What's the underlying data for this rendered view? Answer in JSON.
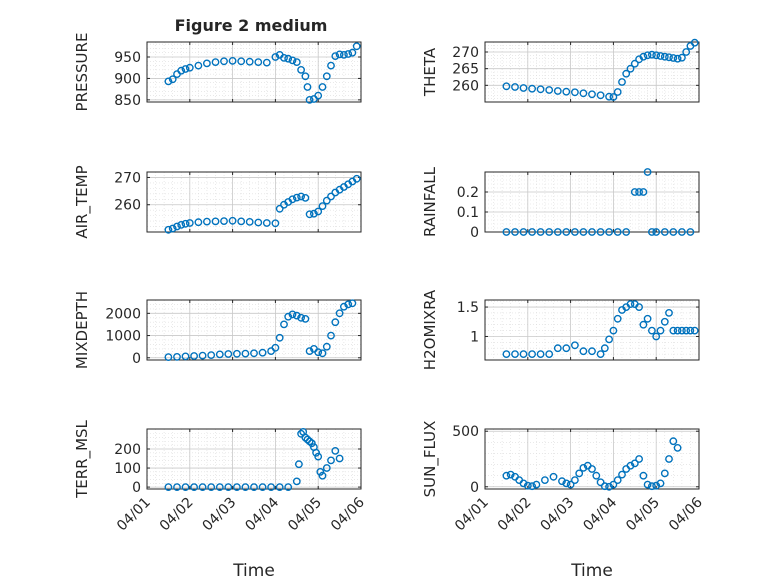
{
  "figure_title": "Figure 2 medium",
  "x_axis_label": "Time",
  "x_tick_labels": [
    "04/01",
    "04/02",
    "04/03",
    "04/04",
    "04/05",
    "04/06"
  ],
  "colors": {
    "marker": "#0072BD",
    "axis": "#262626",
    "grid": "#DCDCDC",
    "background": "#ffffff"
  },
  "chart_data": [
    {
      "type": "scatter",
      "ylabel": "PRESSURE",
      "x_ticks": [
        0,
        1,
        2,
        3,
        4,
        5
      ],
      "xlim": [
        0,
        5
      ],
      "ylim": [
        845,
        985
      ],
      "yticks": [
        850,
        900,
        950
      ],
      "yticklabels": [
        "850",
        "900",
        "950"
      ],
      "x": [
        0.5,
        0.6,
        0.7,
        0.8,
        0.9,
        1.0,
        1.2,
        1.4,
        1.6,
        1.8,
        2.0,
        2.2,
        2.4,
        2.6,
        2.8,
        3.0,
        3.1,
        3.2,
        3.3,
        3.4,
        3.5,
        3.6,
        3.7,
        3.75,
        3.8,
        3.9,
        4.0,
        4.1,
        4.2,
        4.3,
        4.4,
        4.5,
        4.6,
        4.7,
        4.8,
        4.9
      ],
      "y": [
        893,
        898,
        910,
        918,
        922,
        925,
        930,
        935,
        938,
        940,
        941,
        940,
        939,
        938,
        937,
        950,
        955,
        948,
        946,
        942,
        938,
        920,
        905,
        880,
        850,
        852,
        860,
        880,
        905,
        930,
        952,
        956,
        955,
        957,
        960,
        975
      ]
    },
    {
      "type": "scatter",
      "ylabel": "THETA",
      "x_ticks": [
        0,
        1,
        2,
        3,
        4,
        5
      ],
      "xlim": [
        0,
        5
      ],
      "ylim": [
        255,
        273
      ],
      "yticks": [
        260,
        265,
        270
      ],
      "yticklabels": [
        "260",
        "265",
        "270"
      ],
      "x": [
        0.5,
        0.7,
        0.9,
        1.1,
        1.3,
        1.5,
        1.7,
        1.9,
        2.1,
        2.3,
        2.5,
        2.7,
        2.9,
        3.0,
        3.1,
        3.2,
        3.3,
        3.4,
        3.5,
        3.6,
        3.7,
        3.8,
        3.9,
        4.0,
        4.1,
        4.2,
        4.3,
        4.4,
        4.5,
        4.6,
        4.7,
        4.8,
        4.9
      ],
      "y": [
        259.7,
        259.5,
        259.2,
        259.0,
        258.8,
        258.6,
        258.3,
        258.1,
        257.9,
        257.6,
        257.3,
        257.0,
        256.6,
        256.5,
        258.0,
        261.0,
        263.5,
        265.0,
        266.5,
        267.8,
        268.6,
        269.0,
        269.2,
        269.0,
        268.8,
        268.6,
        268.4,
        268.2,
        268.0,
        268.3,
        270.0,
        271.8,
        272.8
      ]
    },
    {
      "type": "scatter",
      "ylabel": "AIR_TEMP",
      "x_ticks": [
        0,
        1,
        2,
        3,
        4,
        5
      ],
      "xlim": [
        0,
        5
      ],
      "ylim": [
        250,
        272
      ],
      "yticks": [
        260,
        270
      ],
      "yticklabels": [
        "260",
        "270"
      ],
      "x": [
        0.5,
        0.6,
        0.7,
        0.8,
        0.9,
        1.0,
        1.2,
        1.4,
        1.6,
        1.8,
        2.0,
        2.2,
        2.4,
        2.6,
        2.8,
        3.0,
        3.1,
        3.2,
        3.3,
        3.4,
        3.5,
        3.6,
        3.7,
        3.8,
        3.9,
        4.0,
        4.1,
        4.2,
        4.3,
        4.4,
        4.5,
        4.6,
        4.7,
        4.8,
        4.9
      ],
      "y": [
        250.8,
        251.3,
        252.0,
        252.6,
        253.0,
        253.3,
        253.6,
        253.8,
        253.9,
        254.0,
        254.1,
        253.9,
        253.7,
        253.5,
        253.3,
        253.2,
        258.5,
        260.0,
        261.0,
        262.0,
        262.6,
        263.0,
        262.5,
        256.5,
        256.7,
        257.5,
        259.5,
        261.5,
        263.0,
        264.5,
        265.5,
        266.5,
        267.5,
        268.5,
        269.5
      ]
    },
    {
      "type": "scatter",
      "ylabel": "RAINFALL",
      "x_ticks": [
        0,
        1,
        2,
        3,
        4,
        5
      ],
      "xlim": [
        0,
        5
      ],
      "ylim": [
        0,
        0.3
      ],
      "yticks": [
        0,
        0.1,
        0.2
      ],
      "yticklabels": [
        "0",
        "0.1",
        "0.2"
      ],
      "x": [
        0.5,
        0.7,
        0.9,
        1.1,
        1.3,
        1.5,
        1.7,
        1.9,
        2.1,
        2.3,
        2.5,
        2.7,
        2.9,
        3.1,
        3.3,
        3.5,
        3.6,
        3.7,
        3.8,
        3.9,
        4.0,
        4.2,
        4.4,
        4.6,
        4.8
      ],
      "y": [
        0,
        0,
        0,
        0,
        0,
        0,
        0,
        0,
        0,
        0,
        0,
        0,
        0,
        0,
        0,
        0.2,
        0.2,
        0.2,
        0.3,
        0,
        0,
        0,
        0,
        0,
        0
      ]
    },
    {
      "type": "scatter",
      "ylabel": "MIXDEPTH",
      "x_ticks": [
        0,
        1,
        2,
        3,
        4,
        5
      ],
      "xlim": [
        0,
        5
      ],
      "ylim": [
        -100,
        2600
      ],
      "yticks": [
        0,
        1000,
        2000
      ],
      "yticklabels": [
        "0",
        "1000",
        "2000"
      ],
      "x": [
        0.5,
        0.7,
        0.9,
        1.1,
        1.3,
        1.5,
        1.7,
        1.9,
        2.1,
        2.3,
        2.5,
        2.7,
        2.9,
        3.0,
        3.1,
        3.2,
        3.3,
        3.4,
        3.5,
        3.6,
        3.7,
        3.8,
        3.9,
        4.0,
        4.1,
        4.2,
        4.3,
        4.4,
        4.5,
        4.6,
        4.7,
        4.8
      ],
      "y": [
        30,
        40,
        60,
        80,
        100,
        120,
        150,
        170,
        180,
        190,
        200,
        230,
        300,
        450,
        900,
        1500,
        1850,
        1950,
        1900,
        1800,
        1750,
        300,
        400,
        250,
        200,
        500,
        1000,
        1600,
        2000,
        2300,
        2400,
        2450
      ]
    },
    {
      "type": "scatter",
      "ylabel": "H2OMIXRA",
      "x_ticks": [
        0,
        1,
        2,
        3,
        4,
        5
      ],
      "xlim": [
        0,
        5
      ],
      "ylim": [
        0.6,
        1.62
      ],
      "yticks": [
        1,
        1.5
      ],
      "yticklabels": [
        "1",
        "1.5"
      ],
      "x": [
        0.5,
        0.7,
        0.9,
        1.1,
        1.3,
        1.5,
        1.7,
        1.9,
        2.1,
        2.3,
        2.5,
        2.7,
        2.8,
        2.9,
        3.0,
        3.1,
        3.2,
        3.3,
        3.4,
        3.5,
        3.6,
        3.7,
        3.8,
        3.9,
        4.0,
        4.1,
        4.2,
        4.3,
        4.4,
        4.5,
        4.6,
        4.7,
        4.8,
        4.9
      ],
      "y": [
        0.7,
        0.7,
        0.7,
        0.7,
        0.7,
        0.7,
        0.8,
        0.8,
        0.85,
        0.75,
        0.75,
        0.7,
        0.8,
        0.95,
        1.1,
        1.3,
        1.45,
        1.5,
        1.55,
        1.55,
        1.5,
        1.2,
        1.3,
        1.1,
        1.0,
        1.1,
        1.25,
        1.4,
        1.1,
        1.1,
        1.1,
        1.1,
        1.1,
        1.1
      ]
    },
    {
      "type": "scatter",
      "ylabel": "TERR_MSL",
      "x_ticks": [
        0,
        1,
        2,
        3,
        4,
        5
      ],
      "xlim": [
        0,
        5
      ],
      "ylim": [
        -10,
        305
      ],
      "yticks": [
        0,
        100,
        200
      ],
      "yticklabels": [
        "0",
        "100",
        "200"
      ],
      "x": [
        0.5,
        0.7,
        0.9,
        1.1,
        1.3,
        1.5,
        1.7,
        1.9,
        2.1,
        2.3,
        2.5,
        2.7,
        2.9,
        3.1,
        3.3,
        3.5,
        3.55,
        3.6,
        3.65,
        3.7,
        3.75,
        3.8,
        3.85,
        3.9,
        3.95,
        4.0,
        4.05,
        4.1,
        4.2,
        4.3,
        4.4,
        4.5
      ],
      "y": [
        0,
        0,
        0,
        0,
        0,
        0,
        0,
        0,
        0,
        0,
        0,
        0,
        0,
        0,
        0,
        30,
        120,
        280,
        290,
        260,
        250,
        240,
        230,
        210,
        180,
        160,
        80,
        60,
        100,
        140,
        190,
        150
      ]
    },
    {
      "type": "scatter",
      "ylabel": "SUN_FLUX",
      "x_ticks": [
        0,
        1,
        2,
        3,
        4,
        5
      ],
      "xlim": [
        0,
        5
      ],
      "ylim": [
        -20,
        520
      ],
      "yticks": [
        0,
        500
      ],
      "yticklabels": [
        "0",
        "500"
      ],
      "x": [
        0.5,
        0.6,
        0.7,
        0.8,
        0.9,
        1.0,
        1.1,
        1.2,
        1.4,
        1.6,
        1.8,
        1.9,
        2.0,
        2.1,
        2.2,
        2.3,
        2.4,
        2.5,
        2.6,
        2.7,
        2.8,
        2.9,
        3.0,
        3.1,
        3.2,
        3.3,
        3.4,
        3.5,
        3.6,
        3.7,
        3.8,
        3.9,
        4.0,
        4.1,
        4.2,
        4.3,
        4.4,
        4.5
      ],
      "y": [
        100,
        110,
        90,
        60,
        30,
        10,
        5,
        20,
        60,
        90,
        50,
        30,
        20,
        60,
        120,
        170,
        190,
        160,
        100,
        40,
        5,
        0,
        20,
        60,
        110,
        160,
        190,
        210,
        250,
        100,
        20,
        5,
        10,
        30,
        120,
        250,
        410,
        350
      ]
    }
  ]
}
